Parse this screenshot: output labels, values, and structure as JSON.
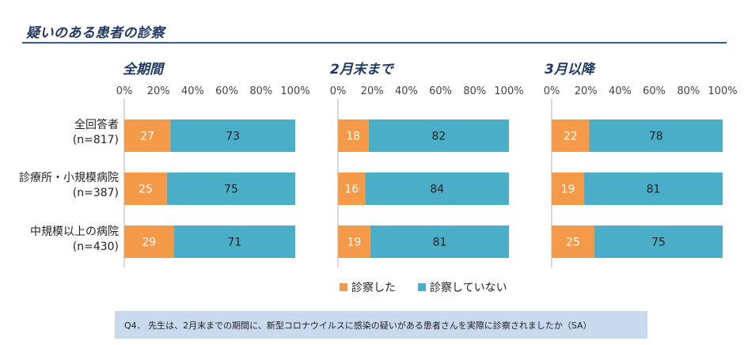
{
  "page_title": "疑いのある患者の診察",
  "colors": {
    "title": "#1f3864",
    "rule": "#2e5c9e",
    "seg1": "#f59a48",
    "seg2": "#4aaec8",
    "note_bg": "#c9d9ee"
  },
  "chart_data": {
    "type": "bar",
    "orientation": "horizontal",
    "stacked": true,
    "categories": [
      {
        "line1": "全回答者",
        "line2": "(n=817)"
      },
      {
        "line1": "診療所・小規模病院",
        "line2": "(n=387)"
      },
      {
        "line1": "中規模以上の病院",
        "line2": "(n=430)"
      }
    ],
    "x_ticks": [
      "0%",
      "20%",
      "40%",
      "60%",
      "80%",
      "100%"
    ],
    "xlim": [
      0,
      100
    ],
    "legend": [
      "診察した",
      "診察していない"
    ],
    "panels": [
      {
        "title": "全期間",
        "series": [
          {
            "name": "診察した",
            "values": [
              27,
              25,
              29
            ]
          },
          {
            "name": "診察していない",
            "values": [
              73,
              75,
              71
            ]
          }
        ]
      },
      {
        "title": "2月末まで",
        "series": [
          {
            "name": "診察した",
            "values": [
              18,
              16,
              19
            ]
          },
          {
            "name": "診察していない",
            "values": [
              82,
              84,
              81
            ]
          }
        ]
      },
      {
        "title": "3月以降",
        "series": [
          {
            "name": "診察した",
            "values": [
              22,
              19,
              25
            ]
          },
          {
            "name": "診察していない",
            "values": [
              78,
              81,
              75
            ]
          }
        ]
      }
    ]
  },
  "note": "Q4． 先生は、2月末までの期間に、新型コロナウイルスに感染の疑いがある患者さんを実際に診察されましたか（SA）"
}
